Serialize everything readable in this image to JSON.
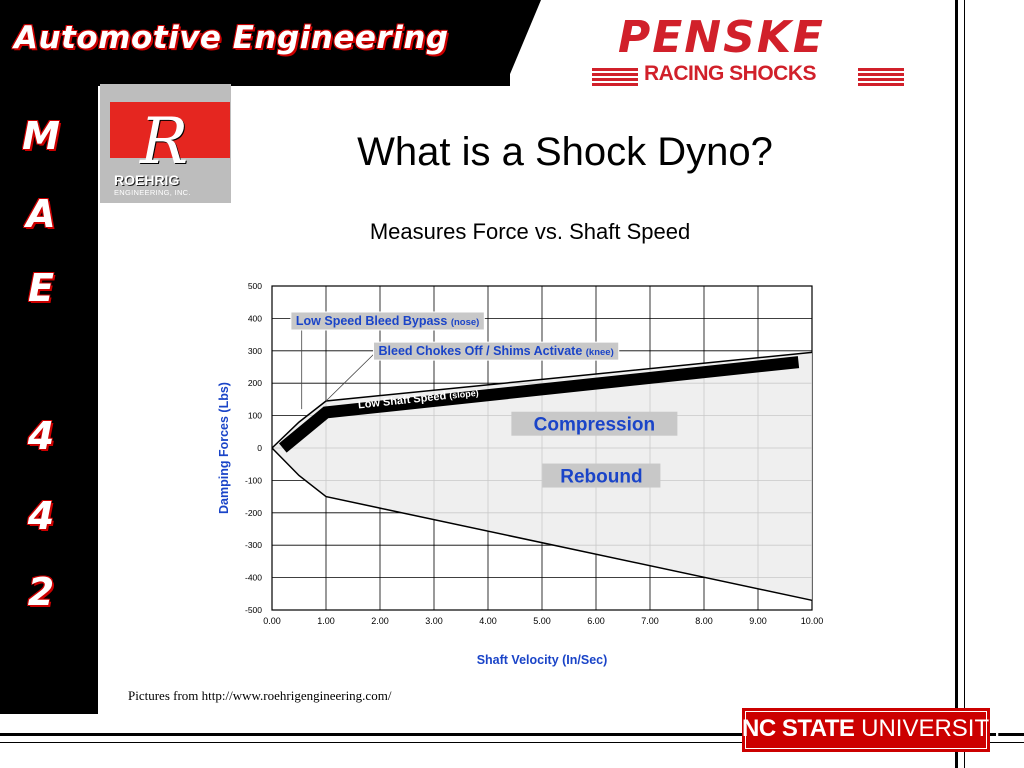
{
  "header": {
    "title": "Automotive Engineering"
  },
  "sidebar": {
    "letters": [
      "M",
      "A",
      "E",
      "4",
      "4",
      "2"
    ]
  },
  "logos": {
    "roehrig": {
      "letter": "R",
      "name": "ROEHRIG",
      "subtitle": "ENGINEERING, INC."
    },
    "penske": {
      "name": "PENSKE",
      "subtitle": "RACING SHOCKS"
    },
    "ncsu": {
      "bold": "NC STATE",
      "regular": " UNIVERSITY"
    }
  },
  "slide": {
    "title": "What is a Shock Dyno?",
    "subtitle": "Measures Force vs. Shaft Speed",
    "caption": "Pictures from http://www.roehrigengineering.com/"
  },
  "colors": {
    "red": "#cc0000",
    "label_blue": "#1a44c8",
    "label_box": "#c8c8c8"
  },
  "chart_data": {
    "type": "line",
    "xlabel": "Shaft Velocity  (In/Sec)",
    "ylabel": "Damping Forces  (Lbs)",
    "xlim": [
      0,
      10
    ],
    "ylim": [
      -500,
      500
    ],
    "x_ticks": [
      "0.00",
      "1.00",
      "2.00",
      "3.00",
      "4.00",
      "5.00",
      "6.00",
      "7.00",
      "8.00",
      "9.00",
      "10.00"
    ],
    "y_ticks": [
      "500",
      "400",
      "300",
      "200",
      "100",
      "0",
      "-100",
      "-200",
      "-300",
      "-400",
      "-500"
    ],
    "grid": true,
    "series": [
      {
        "name": "Compression",
        "x": [
          0,
          0.5,
          1.0,
          10
        ],
        "y": [
          0,
          80,
          145,
          295
        ]
      },
      {
        "name": "Rebound",
        "x": [
          0,
          0.5,
          1.0,
          10
        ],
        "y": [
          0,
          -85,
          -150,
          -470
        ]
      },
      {
        "name": "",
        "x": [
          0.2,
          1.0,
          9.75
        ],
        "y": [
          0,
          110,
          265
        ]
      }
    ],
    "labels": [
      {
        "text": "Low Speed Bleed Bypass",
        "suffix": "(nose)",
        "x": 0.35,
        "y": 392
      },
      {
        "text": "Bleed Chokes Off / Shims Activate",
        "suffix": "(knee)",
        "x": 1.88,
        "y": 299
      },
      {
        "text": "Low Shaft Speed",
        "suffix": "(slope)",
        "x": 1.6,
        "y": 122
      },
      {
        "text": "Compression",
        "suffix": "",
        "x": 5.97,
        "y": 75
      },
      {
        "text": "Rebound",
        "suffix": "",
        "x": 6.1,
        "y": -85
      }
    ]
  }
}
